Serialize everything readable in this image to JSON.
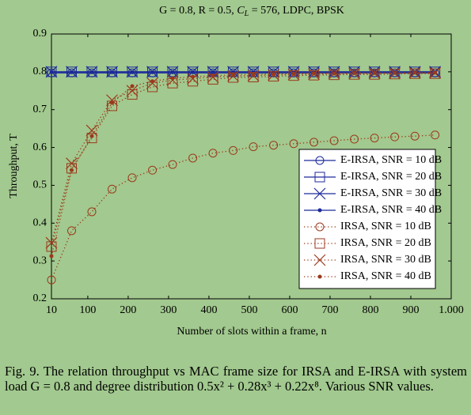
{
  "chart_data": {
    "type": "line",
    "title": [
      "G = 0.8, R = 0.5, ",
      "C",
      "L",
      " = 576, LDPC, BPSK"
    ],
    "xlabel": "Number of slots within a frame, n",
    "ylabel": "Throughput, T",
    "x": [
      10,
      60,
      110,
      160,
      210,
      260,
      310,
      360,
      410,
      460,
      510,
      560,
      610,
      660,
      710,
      760,
      810,
      860,
      910,
      960
    ],
    "xlim": [
      10,
      1000
    ],
    "xticks": [
      10,
      100,
      200,
      300,
      400,
      500,
      600,
      700,
      800,
      900,
      {
        "value": 1000,
        "label": "1.000"
      }
    ],
    "ylim": [
      0.2,
      0.9
    ],
    "yticks": [
      0.2,
      0.3,
      0.4,
      0.5,
      0.6,
      0.7,
      0.8,
      0.9
    ],
    "series": [
      {
        "name": "E-IRSA, SNR = 10 dB",
        "color": "#1c2a9a",
        "marker": "circle",
        "line_style": "solid",
        "values": [
          0.797,
          0.797,
          0.797,
          0.797,
          0.797,
          0.797,
          0.797,
          0.797,
          0.797,
          0.797,
          0.797,
          0.797,
          0.797,
          0.797,
          0.797,
          0.797,
          0.797,
          0.797,
          0.797,
          0.797
        ]
      },
      {
        "name": "E-IRSA, SNR = 20 dB",
        "color": "#1c2a9a",
        "marker": "square",
        "line_style": "solid",
        "values": [
          0.8,
          0.8,
          0.8,
          0.8,
          0.8,
          0.8,
          0.8,
          0.8,
          0.8,
          0.8,
          0.8,
          0.8,
          0.8,
          0.8,
          0.8,
          0.8,
          0.8,
          0.8,
          0.8,
          0.8
        ]
      },
      {
        "name": "E-IRSA, SNR = 30 dB",
        "color": "#1c2a9a",
        "marker": "cross",
        "line_style": "solid",
        "values": [
          0.8,
          0.8,
          0.8,
          0.8,
          0.8,
          0.8,
          0.8,
          0.8,
          0.8,
          0.8,
          0.8,
          0.8,
          0.8,
          0.8,
          0.8,
          0.8,
          0.8,
          0.8,
          0.8,
          0.8
        ]
      },
      {
        "name": "E-IRSA, SNR = 40 dB",
        "color": "#1c2a9a",
        "marker": "dot",
        "line_style": "solid",
        "values": [
          0.799,
          0.799,
          0.799,
          0.799,
          0.799,
          0.799,
          0.799,
          0.799,
          0.799,
          0.799,
          0.799,
          0.799,
          0.799,
          0.799,
          0.799,
          0.799,
          0.799,
          0.799,
          0.799,
          0.799
        ]
      },
      {
        "name": "IRSA, SNR = 10 dB",
        "color": "#9a3a1c",
        "marker": "circle",
        "line_style": "dotted",
        "values": [
          0.25,
          0.38,
          0.43,
          0.49,
          0.52,
          0.54,
          0.555,
          0.572,
          0.585,
          0.592,
          0.602,
          0.606,
          0.61,
          0.614,
          0.618,
          0.622,
          0.625,
          0.628,
          0.63,
          0.633
        ]
      },
      {
        "name": "IRSA, SNR = 20 dB",
        "color": "#9a3a1c",
        "marker": "square",
        "line_style": "dotted",
        "values": [
          0.338,
          0.545,
          0.625,
          0.71,
          0.74,
          0.76,
          0.77,
          0.775,
          0.78,
          0.785,
          0.786,
          0.788,
          0.79,
          0.791,
          0.792,
          0.793,
          0.793,
          0.794,
          0.795,
          0.795
        ]
      },
      {
        "name": "IRSA, SNR = 30 dB",
        "color": "#9a3a1c",
        "marker": "cross",
        "line_style": "dotted",
        "values": [
          0.348,
          0.558,
          0.645,
          0.725,
          0.75,
          0.77,
          0.778,
          0.782,
          0.786,
          0.789,
          0.79,
          0.792,
          0.793,
          0.794,
          0.795,
          0.795,
          0.796,
          0.796,
          0.797,
          0.797
        ]
      },
      {
        "name": "IRSA, SNR = 40 dB",
        "color": "#9a3a1c",
        "marker": "dot",
        "line_style": "dotted",
        "values": [
          0.313,
          0.54,
          0.63,
          0.718,
          0.762,
          0.775,
          0.783,
          0.787,
          0.79,
          0.792,
          0.793,
          0.794,
          0.795,
          0.796,
          0.796,
          0.797,
          0.797,
          0.797,
          0.798,
          0.798
        ]
      }
    ],
    "legend": "lower right",
    "caption": "Fig. 9.  The relation throughput vs MAC frame size for IRSA and E-IRSA with system load G = 0.8 and degree distribution 0.5x² + 0.28x³ + 0.22x⁸. Various SNR values."
  }
}
